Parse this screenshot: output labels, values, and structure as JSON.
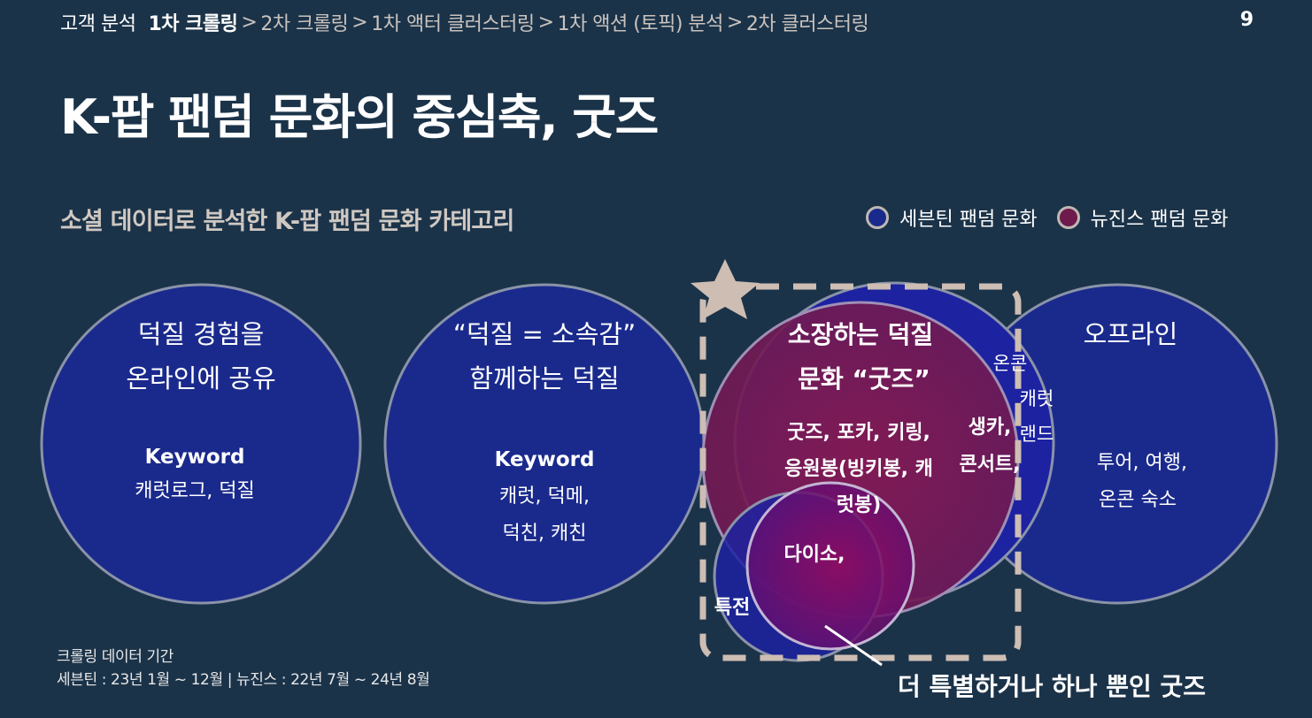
{
  "breadcrumb": {
    "first": "고객 분석",
    "items": [
      "1차 크롤링",
      "2차 크롤링",
      "1차 액터 클러스터링",
      "1차 액션 (토픽) 분석",
      "2차 클러스터링"
    ],
    "active_index": 0,
    "separator": ">"
  },
  "page_number": "9",
  "title": "K-팝 팬덤 문화의 중심축, 굿즈",
  "subtitle": "소셜 데이터로 분석한 K-팝 팬덤 문화 카테고리",
  "legend": [
    {
      "label": "세븐틴 팬덤 문화",
      "color": "#1a2a8c"
    },
    {
      "label": "뉴진스 팬덤 문화",
      "color": "#6e1a4c"
    }
  ],
  "circles": {
    "c1": {
      "title1": "덕질 경험을",
      "title2": "온라인에 공유",
      "keyword_label": "Keyword",
      "kw1": "캐럿로그, 덕질"
    },
    "c2": {
      "title1": "“덕질 = 소속감”",
      "title2": "함께하는 덕질",
      "keyword_label": "Keyword",
      "kw1": "캐럿, 덕메,",
      "kw2": "덕친, 캐친"
    },
    "c3": {
      "title1": "소장하는 덕질",
      "title2": "문화 “굿즈”",
      "items1": "굿즈, 포카, 키링,",
      "items2": "응원봉(빙키봉, 캐",
      "items3": "럿봉)",
      "items_small": "다이소,",
      "items_outer": "특전",
      "items_right1": "생카,",
      "items_right2": "콘서트,"
    },
    "c4": {
      "title": "오프라인",
      "overlap1": "온콘",
      "overlap2": "캐럿",
      "overlap3": "랜드",
      "kw1": "투어, 여행,",
      "kw2": "온콘 숙소"
    }
  },
  "callout": "더 특별하거나 하나 뿐인 굿즈",
  "footnote": {
    "line1": "크롤링 데이터 기간",
    "line2": "세븐틴 : 23년 1월 ~ 12월 | 뉴진스 : 22년 7월 ~ 24년 8월"
  },
  "colors": {
    "background": "#1b3349",
    "seventeen_circle": "#1a2a8c",
    "newjeans_circle": "#7a1850",
    "highlight_border": "#cdbdb3"
  }
}
